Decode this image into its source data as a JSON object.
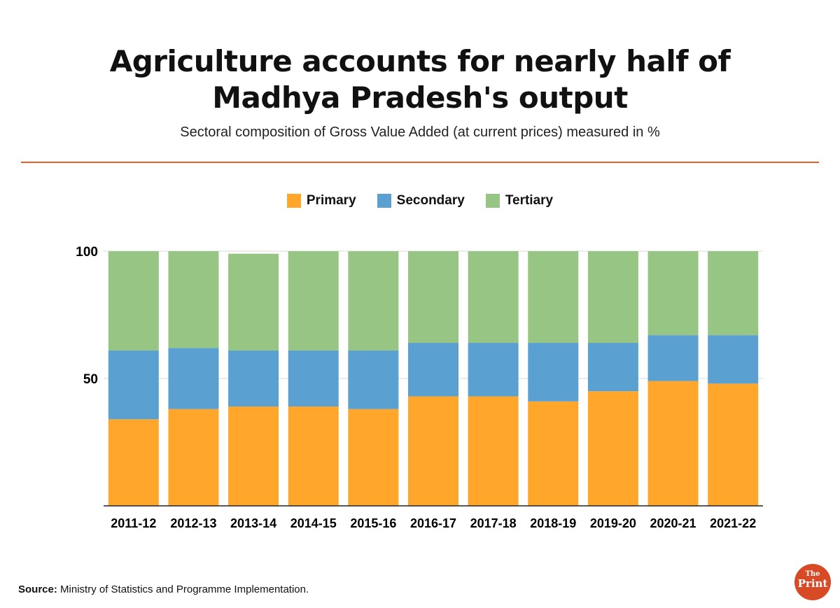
{
  "title_line1": "Agriculture accounts for nearly half of",
  "title_line2": "Madhya Pradesh's output",
  "subtitle": "Sectoral composition of Gross Value Added (at current prices) measured in %",
  "source_label": "Source:",
  "source_text": " Ministry of Statistics and Programme Implementation.",
  "logo": {
    "line1": "The",
    "line2": "Print"
  },
  "chart_data": {
    "type": "bar",
    "stacked": true,
    "categories": [
      "2011-12",
      "2012-13",
      "2013-14",
      "2014-15",
      "2015-16",
      "2016-17",
      "2017-18",
      "2018-19",
      "2019-20",
      "2020-21",
      "2021-22"
    ],
    "series": [
      {
        "name": "Primary",
        "color": "#FFA62B",
        "values": [
          34,
          38,
          39,
          39,
          38,
          43,
          43,
          41,
          45,
          49,
          48
        ]
      },
      {
        "name": "Secondary",
        "color": "#5AA0D0",
        "values": [
          27,
          24,
          22,
          22,
          23,
          21,
          21,
          23,
          19,
          18,
          19
        ]
      },
      {
        "name": "Tertiary",
        "color": "#97C584",
        "values": [
          39,
          38,
          38,
          39,
          39,
          36,
          36,
          36,
          36,
          33,
          33
        ]
      }
    ],
    "yticks": [
      50,
      100
    ],
    "ylim": [
      0,
      100
    ],
    "grid": true,
    "legend": "top-center",
    "accent_rule_color": "#E0622A"
  }
}
